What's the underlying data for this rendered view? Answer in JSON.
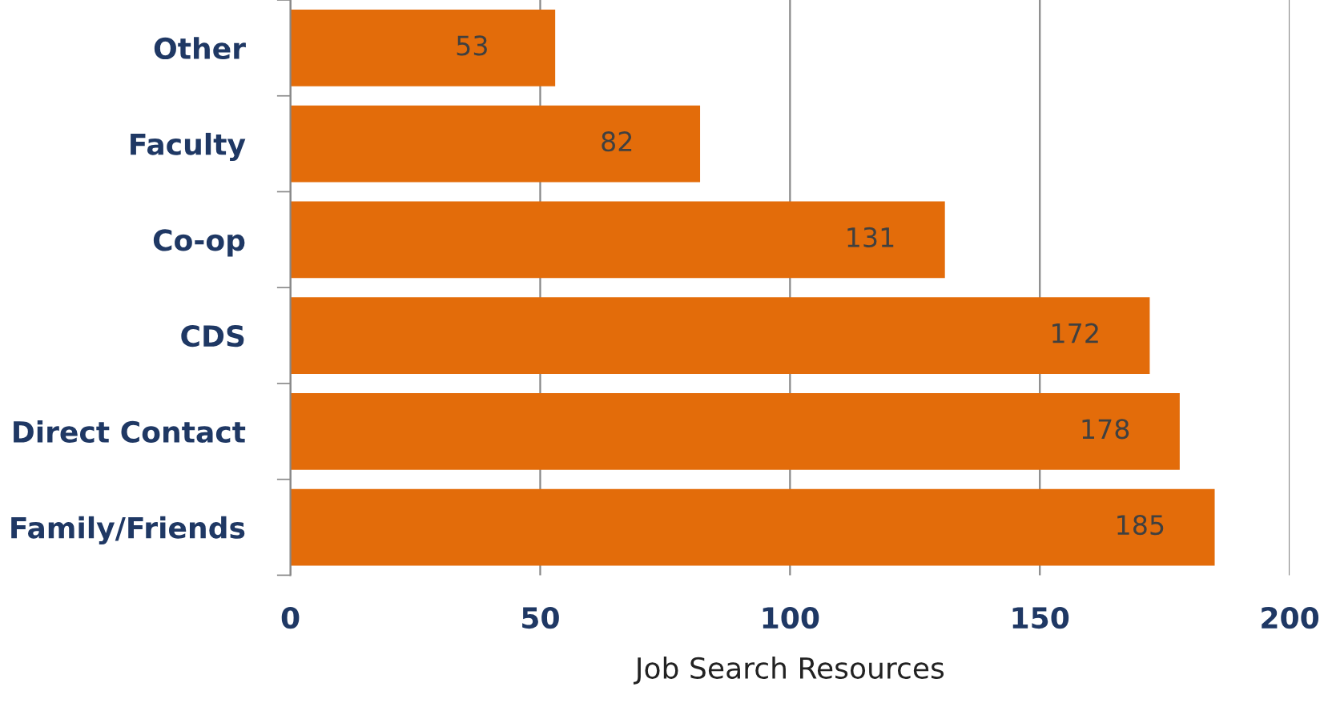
{
  "chart_data": {
    "type": "bar",
    "orientation": "horizontal",
    "xlabel": "Job Search Resources",
    "categories": [
      "Other",
      "Faculty",
      "Co-op",
      "CDS",
      "Direct Contact",
      "Family/Friends"
    ],
    "values": [
      53,
      82,
      131,
      172,
      178,
      185
    ],
    "color": "#e36c0a",
    "xlim": [
      0,
      200
    ],
    "xticks": [
      0,
      50,
      100,
      150,
      200
    ],
    "grid": "x",
    "data_labels": true
  }
}
